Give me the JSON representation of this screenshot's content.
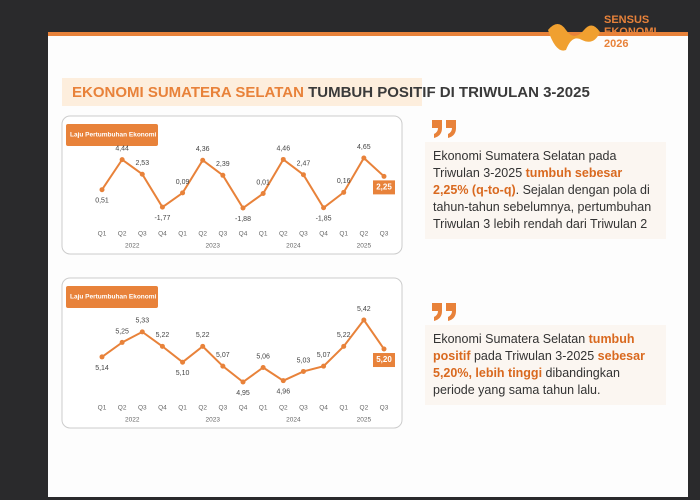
{
  "header": {
    "title_highlight": "EKONOMI SUMATERA SELATAN",
    "title_rest": "TUMBUH POSITIF DI TRIWULAN 3-2025"
  },
  "logo": {
    "line1": "SENSUS",
    "line2": "EKONOMI",
    "line3": "2026"
  },
  "chart_data": [
    {
      "type": "line",
      "title": "Laju Pertumbuhan Ekonomi (%, q-to-q)",
      "color": "#e8823a",
      "categories": [
        "Q1",
        "Q2",
        "Q3",
        "Q4",
        "Q1",
        "Q2",
        "Q3",
        "Q4",
        "Q1",
        "Q2",
        "Q3",
        "Q4",
        "Q1",
        "Q2",
        "Q3"
      ],
      "years": [
        "2022",
        "2023",
        "2024",
        "2025"
      ],
      "values": [
        0.51,
        4.44,
        2.53,
        -1.77,
        0.09,
        4.36,
        2.39,
        -1.88,
        0.01,
        4.46,
        2.47,
        -1.85,
        0.16,
        4.65,
        2.25
      ],
      "value_labels": [
        "0,51",
        "4,44",
        "2,53",
        "-1,77",
        "0,09",
        "4,36",
        "2,39",
        "-1,88",
        "0,01",
        "4,46",
        "2,47",
        "-1,85",
        "0,16",
        "4,65",
        "2,25"
      ]
    },
    {
      "type": "line",
      "title": "Laju Pertumbuhan Ekonomi (%, y-on-y)",
      "color": "#e8823a",
      "categories": [
        "Q1",
        "Q2",
        "Q3",
        "Q4",
        "Q1",
        "Q2",
        "Q3",
        "Q4",
        "Q1",
        "Q2",
        "Q3",
        "Q4",
        "Q1",
        "Q2",
        "Q3"
      ],
      "years": [
        "2022",
        "2023",
        "2024",
        "2025"
      ],
      "values": [
        5.14,
        5.25,
        5.33,
        5.22,
        5.1,
        5.22,
        5.07,
        4.95,
        5.06,
        4.96,
        5.03,
        5.07,
        5.22,
        5.42,
        5.2
      ],
      "value_labels": [
        "5,14",
        "5,25",
        "5,33",
        "5,22",
        "5,10",
        "5,22",
        "5,07",
        "4,95",
        "5,06",
        "4,96",
        "5,03",
        "5,07",
        "5,22",
        "5,42",
        "5,20"
      ]
    }
  ],
  "quotes": [
    {
      "parts": [
        {
          "text": "Ekonomi Sumatera Selatan pada Triwulan 3-2025 ",
          "bold": false
        },
        {
          "text": "tumbuh sebesar 2,25% (q-to-q)",
          "bold": true
        },
        {
          "text": ". Sejalan dengan pola di tahun-tahun sebelumnya, pertumbuhan Triwulan 3 lebih rendah dari Triwulan 2",
          "bold": false
        }
      ]
    },
    {
      "parts": [
        {
          "text": "Ekonomi Sumatera Selatan ",
          "bold": false
        },
        {
          "text": "tumbuh positif",
          "bold": true
        },
        {
          "text": " pada Triwulan 3-2025 ",
          "bold": false
        },
        {
          "text": "sebesar 5,20%, lebih tinggi",
          "bold": true
        },
        {
          "text": " dibandingkan periode yang sama tahun lalu.",
          "bold": false
        }
      ]
    }
  ]
}
